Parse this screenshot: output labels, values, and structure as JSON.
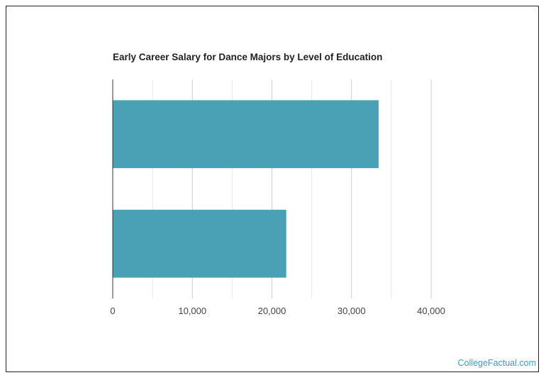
{
  "chart_data": {
    "type": "bar",
    "orientation": "horizontal",
    "title": "Early Career Salary for Dance Majors by Level of Education",
    "categories": [
      "",
      ""
    ],
    "values": [
      33400,
      21800
    ],
    "bar_color": "#4aa0b4",
    "xlim": [
      0,
      40000
    ],
    "x_ticks": [
      0,
      10000,
      20000,
      30000,
      40000
    ],
    "x_tick_labels": [
      "0",
      "10,000",
      "20,000",
      "30,000",
      "40,000"
    ],
    "minor_grid_step": 5000,
    "grid": true,
    "legend": "none"
  },
  "watermark": {
    "text": "CollegeFactual.com",
    "color": "#3a9dbb"
  }
}
